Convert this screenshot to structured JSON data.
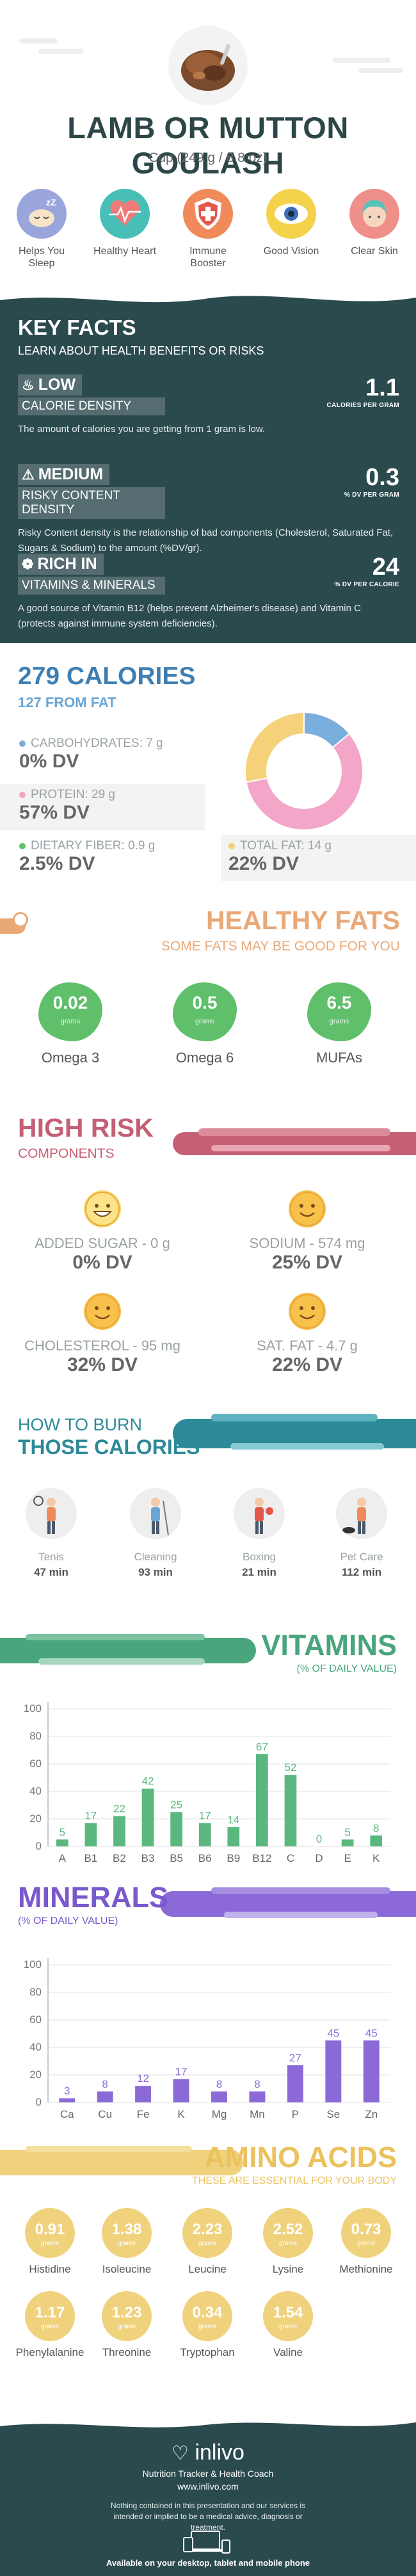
{
  "header": {
    "title": "LAMB OR MUTTON GOULASH",
    "serving": "Cup (249 g / 8.8 oz)",
    "benefits": [
      {
        "label": "Helps You Sleep",
        "icon": "sleep-icon",
        "color": "#9aa5dc"
      },
      {
        "label": "Healthy Heart",
        "icon": "heart-icon",
        "color": "#47bfb6"
      },
      {
        "label": "Immune Booster",
        "icon": "shield-icon",
        "color": "#f08a5b"
      },
      {
        "label": "Good Vision",
        "icon": "eye-icon",
        "color": "#f5d24b"
      },
      {
        "label": "Clear Skin",
        "icon": "face-icon",
        "color": "#ef8f8a"
      }
    ]
  },
  "key_facts": {
    "title": "KEY FACTS",
    "subtitle": "LEARN ABOUT HEALTH BENEFITS OR RISKS",
    "items": [
      {
        "level": "LOW",
        "category": "CALORIE DENSITY",
        "value": "1.1",
        "unit": "CALORIES PER GRAM",
        "icon": "flame-icon",
        "desc": "The amount of calories you are getting from 1 gram is low."
      },
      {
        "level": "MEDIUM",
        "category": "RISKY CONTENT DENSITY",
        "value": "0.3",
        "unit": "% DV PER GRAM",
        "icon": "warning-icon",
        "desc": "Risky Content density is the relationship of bad components (Cholesterol, Saturated Fat, Sugars & Sodium) to the amount (%DV/gr)."
      },
      {
        "level": "RICH  IN",
        "category": "VITAMINS & MINERALS",
        "value": "24",
        "unit": "% DV PER CALORIE",
        "icon": "leaf-icon",
        "desc": "A good source of Vitamin B12 (helps prevent Alzheimer's disease) and Vitamin C (protects against immune system deficiencies)."
      }
    ]
  },
  "calories": {
    "title": "279 CALORIES",
    "from_fat": "127 FROM FAT",
    "macros": [
      {
        "label": "CARBOHYDRATES: 7 g",
        "dv": "0% DV",
        "color": "#7aaedc"
      },
      {
        "label": "PROTEIN: 29 g",
        "dv": "57% DV",
        "color": "#f3a6c8"
      },
      {
        "label": "DIETARY FIBER: 0.9 g",
        "dv": "2.5% DV",
        "color": "#5fbf6a"
      }
    ],
    "total_fat": {
      "label": "TOTAL FAT: 14 g",
      "dv": "22% DV",
      "color": "#f5d27a"
    }
  },
  "chart_data": [
    {
      "type": "pie",
      "categories": [
        "Carbohydrates",
        "Protein",
        "Total Fat"
      ],
      "values": [
        7,
        29,
        14
      ],
      "colors": [
        "#7aaedc",
        "#f3a6c8",
        "#f5d27a"
      ]
    },
    {
      "type": "bar",
      "categories": [
        "A",
        "B1",
        "B2",
        "B3",
        "B5",
        "B6",
        "B9",
        "B12",
        "C",
        "D",
        "E",
        "K"
      ],
      "values": [
        5,
        17,
        22,
        42,
        25,
        17,
        14,
        67,
        52,
        0,
        5,
        8
      ],
      "ylim": [
        0,
        100
      ],
      "yticks": [
        0,
        20,
        40,
        60,
        80,
        100
      ],
      "color": "#5ab87e"
    },
    {
      "type": "bar",
      "categories": [
        "Ca",
        "Cu",
        "Fe",
        "K",
        "Mg",
        "Mn",
        "P",
        "Se",
        "Zn"
      ],
      "values": [
        3,
        8,
        12,
        17,
        8,
        8,
        27,
        45,
        45
      ],
      "ylim": [
        0,
        100
      ],
      "yticks": [
        0,
        20,
        40,
        60,
        80,
        100
      ],
      "color": "#8b6ad8"
    }
  ],
  "healthy_fats": {
    "title": "HEALTHY FATS",
    "subtitle": "SOME FATS MAY BE GOOD FOR YOU",
    "items": [
      {
        "value": "0.02",
        "unit": "grams",
        "label": "Omega 3"
      },
      {
        "value": "0.5",
        "unit": "grams",
        "label": "Omega 6"
      },
      {
        "value": "6.5",
        "unit": "grams",
        "label": "MUFAs"
      }
    ]
  },
  "high_risk": {
    "title": "HIGH RISK",
    "subtitle": "COMPONENTS",
    "items": [
      {
        "label": "ADDED SUGAR - 0 g",
        "dv": "0% DV",
        "face": "laugh-icon"
      },
      {
        "label": "SODIUM - 574 mg",
        "dv": "25% DV",
        "face": "smile-icon"
      },
      {
        "label": "CHOLESTEROL - 95 mg",
        "dv": "32% DV",
        "face": "smile-icon"
      },
      {
        "label": "SAT. FAT - 4.7 g",
        "dv": "22% DV",
        "face": "smile-icon"
      }
    ]
  },
  "burn": {
    "title_1": "HOW TO BURN",
    "title_2": "THOSE CALORIES",
    "items": [
      {
        "name": "Tenis",
        "minutes": "47 min",
        "icon": "tennis-icon"
      },
      {
        "name": "Cleaning",
        "minutes": "93 min",
        "icon": "cleaning-icon"
      },
      {
        "name": "Boxing",
        "minutes": "21 min",
        "icon": "boxing-icon"
      },
      {
        "name": "Pet Care",
        "minutes": "112 min",
        "icon": "pet-care-icon"
      }
    ]
  },
  "vitamins": {
    "title": "VITAMINS",
    "subtitle": "(% OF DAILY VALUE)"
  },
  "minerals": {
    "title": "MINERALS",
    "subtitle": "(% OF DAILY VALUE)"
  },
  "amino": {
    "title": "AMINO ACIDS",
    "subtitle": "THESE ARE ESSENTIAL FOR YOUR BODY",
    "items": [
      {
        "value": "0.91",
        "name": "Histidine"
      },
      {
        "value": "1.38",
        "name": "Isoleucine"
      },
      {
        "value": "2.23",
        "name": "Leucine"
      },
      {
        "value": "2.52",
        "name": "Lysine"
      },
      {
        "value": "0.73",
        "name": "Methionine"
      },
      {
        "value": "1.17",
        "name": "Phenylalanine"
      },
      {
        "value": "1.23",
        "name": "Threonine"
      },
      {
        "value": "0.34",
        "name": "Tryptophan"
      },
      {
        "value": "1.54",
        "name": "Valine"
      }
    ],
    "unit": "grams"
  },
  "footer": {
    "brand": "inlivo",
    "tagline": "Nutrition Tracker & Health Coach",
    "site": "www.inlivo.com",
    "disclaimer": "Nothing contained in this presentation and our services is intended or implied to be a medical advice, diagnosis or treatment.",
    "available": "Available on your desktop, tablet and mobile phone"
  }
}
